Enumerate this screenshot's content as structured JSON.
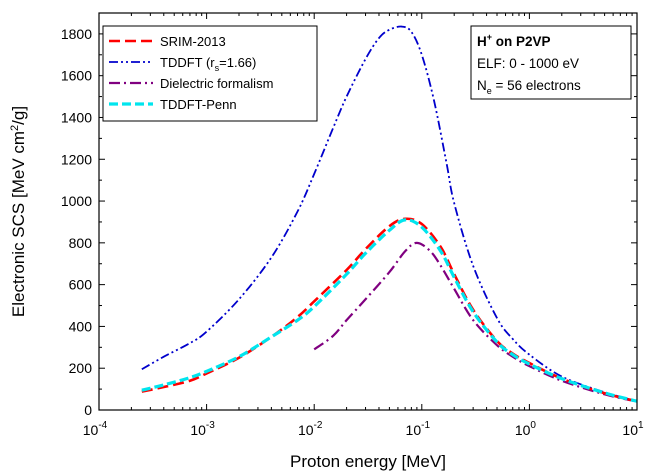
{
  "chart_data": {
    "type": "line",
    "title": "",
    "xlabel": "Proton energy [MeV]",
    "ylabel": {
      "main": "Electronic SCS [MeV cm",
      "sup": "2",
      "tail": "/g]"
    },
    "xscale": "log",
    "xlim": [
      0.0001,
      10
    ],
    "ylim": [
      0,
      1900
    ],
    "x_ticks": [
      {
        "value": 0.0001,
        "base": "10",
        "exp": "-4"
      },
      {
        "value": 0.001,
        "base": "10",
        "exp": "-3"
      },
      {
        "value": 0.01,
        "base": "10",
        "exp": "-2"
      },
      {
        "value": 0.1,
        "base": "10",
        "exp": "-1"
      },
      {
        "value": 1,
        "base": "10",
        "exp": "0"
      },
      {
        "value": 10,
        "base": "10",
        "exp": "1"
      }
    ],
    "y_ticks": [
      0,
      200,
      400,
      600,
      800,
      1000,
      1200,
      1400,
      1600,
      1800
    ],
    "grid": false,
    "legend_position": "top-left",
    "series": [
      {
        "name": "SRIM-2013",
        "legend": {
          "main": "SRIM-2013"
        },
        "color": "#ff0000",
        "dash": "11,5",
        "width": 2.6,
        "x": [
          0.00025,
          0.0004,
          0.0007,
          0.001,
          0.002,
          0.004,
          0.007,
          0.01,
          0.02,
          0.03,
          0.05,
          0.07,
          0.1,
          0.15,
          0.2,
          0.3,
          0.5,
          0.7,
          1,
          2,
          5,
          10
        ],
        "y": [
          88,
          110,
          140,
          175,
          250,
          350,
          445,
          520,
          670,
          770,
          880,
          915,
          890,
          780,
          650,
          480,
          330,
          270,
          225,
          150,
          80,
          42
        ]
      },
      {
        "name": "TDDFT (rs=1.66)",
        "legend": {
          "main": "TDDFT (r",
          "sub": "s",
          "tail": "=1.66)"
        },
        "color": "#0000cc",
        "dash": "9,3,2,3,2,3",
        "width": 1.8,
        "x": [
          0.00025,
          0.0004,
          0.0007,
          0.001,
          0.002,
          0.004,
          0.007,
          0.01,
          0.015,
          0.02,
          0.03,
          0.04,
          0.05,
          0.065,
          0.08,
          0.1,
          0.13,
          0.17,
          0.2,
          0.3,
          0.5,
          0.7,
          1,
          2,
          5,
          10
        ],
        "y": [
          195,
          255,
          320,
          375,
          530,
          730,
          950,
          1130,
          1350,
          1500,
          1680,
          1780,
          1820,
          1835,
          1810,
          1700,
          1480,
          1180,
          990,
          690,
          440,
          340,
          265,
          160,
          85,
          42
        ]
      },
      {
        "name": "Dielectric formalism",
        "legend": {
          "main": "Dielectric formalism"
        },
        "color": "#800080",
        "dash": "11,4,2,4",
        "width": 2.2,
        "x": [
          0.01,
          0.015,
          0.02,
          0.03,
          0.05,
          0.07,
          0.09,
          0.12,
          0.15,
          0.2,
          0.3,
          0.5,
          0.7,
          1,
          2,
          5,
          10
        ],
        "y": [
          290,
          355,
          430,
          530,
          660,
          760,
          800,
          760,
          690,
          580,
          430,
          310,
          255,
          210,
          140,
          75,
          40
        ]
      },
      {
        "name": "TDDFT-Penn",
        "legend": {
          "main": "TDDFT-Penn"
        },
        "color": "#00e5ee",
        "dash": "9,4",
        "width": 3.2,
        "x": [
          0.00025,
          0.0004,
          0.0007,
          0.001,
          0.002,
          0.004,
          0.007,
          0.01,
          0.02,
          0.03,
          0.05,
          0.07,
          0.1,
          0.15,
          0.2,
          0.3,
          0.5,
          0.7,
          1,
          2,
          5,
          10
        ],
        "y": [
          95,
          120,
          155,
          185,
          255,
          350,
          430,
          495,
          650,
          750,
          860,
          910,
          875,
          760,
          635,
          470,
          325,
          265,
          220,
          150,
          82,
          42
        ]
      }
    ],
    "annotation": {
      "line1": {
        "sym": "H",
        "sup": "+",
        "tail": " on P2VP"
      },
      "line2": "ELF: 0 - 1000 eV",
      "line3": {
        "main": "N",
        "sub": "e",
        "tail": " = 56 electrons"
      }
    }
  }
}
